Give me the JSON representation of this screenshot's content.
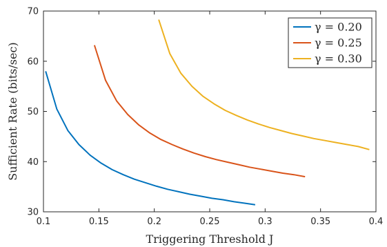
{
  "chart_data": {
    "type": "line",
    "title": "",
    "xlabel": "Triggering Threshold J",
    "ylabel": "Sufficient Rate (bits/sec)",
    "xlim": [
      0.1,
      0.4
    ],
    "ylim": [
      30,
      70
    ],
    "xticks": [
      0.1,
      0.15,
      0.2,
      0.25,
      0.3,
      0.35,
      0.4
    ],
    "yticks": [
      30,
      40,
      50,
      60,
      70
    ],
    "xtick_labels": [
      "0.1",
      "0.15",
      "0.2",
      "0.25",
      "0.3",
      "0.35",
      "0.4"
    ],
    "ytick_labels": [
      "30",
      "40",
      "50",
      "60",
      "70"
    ],
    "grid": false,
    "legend_position": "top-right",
    "series": [
      {
        "name": "γ = 0.20",
        "color": "#0072BD",
        "x": [
          0.102,
          0.112,
          0.122,
          0.132,
          0.142,
          0.152,
          0.162,
          0.172,
          0.182,
          0.192,
          0.202,
          0.212,
          0.222,
          0.232,
          0.242,
          0.252,
          0.262,
          0.272,
          0.282,
          0.291
        ],
        "y": [
          58.0,
          50.5,
          46.2,
          43.4,
          41.3,
          39.7,
          38.4,
          37.4,
          36.5,
          35.8,
          35.1,
          34.5,
          34.0,
          33.5,
          33.1,
          32.7,
          32.4,
          32.0,
          31.7,
          31.4
        ]
      },
      {
        "name": "γ = 0.25",
        "color": "#D95319",
        "x": [
          0.146,
          0.156,
          0.166,
          0.176,
          0.186,
          0.196,
          0.206,
          0.216,
          0.226,
          0.236,
          0.246,
          0.256,
          0.266,
          0.276,
          0.286,
          0.296,
          0.306,
          0.316,
          0.326,
          0.336
        ],
        "y": [
          63.2,
          56.2,
          52.1,
          49.4,
          47.3,
          45.7,
          44.4,
          43.4,
          42.5,
          41.7,
          41.0,
          40.4,
          39.9,
          39.4,
          38.9,
          38.5,
          38.1,
          37.7,
          37.4,
          37.0
        ]
      },
      {
        "name": "γ = 0.30",
        "color": "#EDB120",
        "x": [
          0.204,
          0.214,
          0.224,
          0.234,
          0.244,
          0.254,
          0.264,
          0.274,
          0.284,
          0.294,
          0.304,
          0.314,
          0.324,
          0.334,
          0.344,
          0.354,
          0.364,
          0.374,
          0.384,
          0.394
        ],
        "y": [
          68.3,
          61.5,
          57.6,
          55.0,
          53.0,
          51.5,
          50.2,
          49.2,
          48.3,
          47.5,
          46.8,
          46.2,
          45.6,
          45.1,
          44.6,
          44.2,
          43.8,
          43.4,
          43.0,
          42.4
        ]
      }
    ]
  }
}
